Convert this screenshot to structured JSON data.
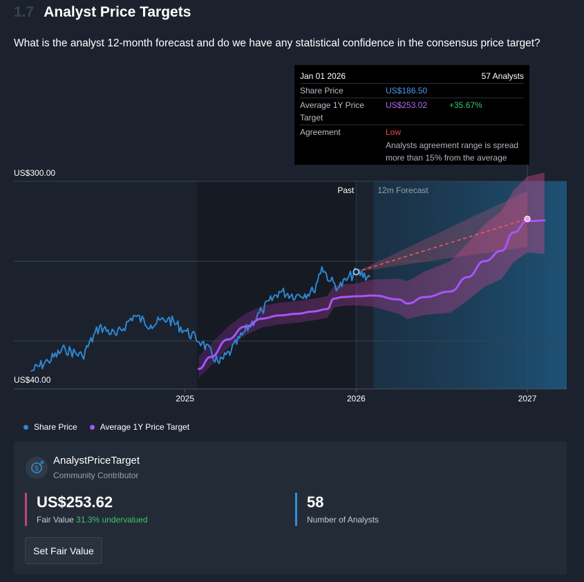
{
  "section": {
    "number": "1.7",
    "title": "Analyst Price Targets"
  },
  "question": "What is the analyst 12-month forecast and do we have any statistical confidence in the consensus price target?",
  "tooltip": {
    "date": "Jan 01 2026",
    "analysts": "57 Analysts",
    "share_price_label": "Share Price",
    "share_price_value": "US$186.50",
    "target_label": "Average 1Y Price Target",
    "target_value": "US$253.02",
    "target_change": "+35.67%",
    "agreement_label": "Agreement",
    "agreement_value": "Low",
    "agreement_desc": "Analysts agreement range is spread more than 15% from the average"
  },
  "chart_data": {
    "type": "line",
    "y_axis_labels": {
      "top": "US$300.00",
      "bottom": "US$40.00"
    },
    "ylim": [
      40,
      300
    ],
    "x_ticks": [
      "2025",
      "2026",
      "2027"
    ],
    "region_labels": {
      "past": "Past",
      "forecast": "12m Forecast"
    },
    "series": [
      {
        "name": "Share Price",
        "color": "#2f86d2",
        "x": [
          2024.1,
          2024.2,
          2024.3,
          2024.4,
          2024.5,
          2024.6,
          2024.7,
          2024.8,
          2024.9,
          2025.0,
          2025.1,
          2025.2,
          2025.27,
          2025.35,
          2025.45,
          2025.55,
          2025.65,
          2025.75,
          2025.8,
          2025.85,
          2025.9,
          2025.95,
          2026.0,
          2026.08
        ],
        "values": [
          62,
          75,
          90,
          81,
          118,
          107,
          132,
          120,
          128,
          113,
          98,
          72,
          88,
          112,
          138,
          162,
          157,
          162,
          193,
          175,
          167,
          178,
          186,
          180
        ]
      },
      {
        "name": "Average 1Y Price Target",
        "color": "#a855f7",
        "x": [
          2025.08,
          2025.15,
          2025.25,
          2025.35,
          2025.45,
          2025.55,
          2025.65,
          2025.75,
          2025.83,
          2025.87,
          2025.92,
          2026.0,
          2026.1,
          2026.25,
          2026.3,
          2026.4,
          2026.55,
          2026.65,
          2026.75,
          2026.85,
          2026.92,
          2027.0,
          2027.1
        ],
        "values": [
          65,
          80,
          102,
          118,
          128,
          132,
          134,
          137,
          140,
          153,
          155,
          156,
          157,
          152,
          147,
          155,
          162,
          180,
          200,
          213,
          236,
          250,
          251
        ]
      }
    ],
    "consensus_line": {
      "from": {
        "x": 2026.0,
        "y": 186.5
      },
      "to": {
        "x": 2027.0,
        "y": 253.02
      }
    },
    "legend": [
      "Share Price",
      "Average 1Y Price Target"
    ],
    "legend_position": "bottom-left",
    "grid": true
  },
  "card": {
    "contributor_name": "AnalystPriceTarget",
    "contributor_role": "Community Contributor",
    "fair_value": "US$253.62",
    "fair_value_label": "Fair Value",
    "undervalued": "31.3% undervalued",
    "analysts_count": "58",
    "analysts_label": "Number of Analysts",
    "button_label": "Set Fair Value"
  },
  "colors": {
    "share_price": "#2f86d2",
    "target": "#a855f7",
    "background": "#1b222d",
    "card": "#232b36"
  }
}
